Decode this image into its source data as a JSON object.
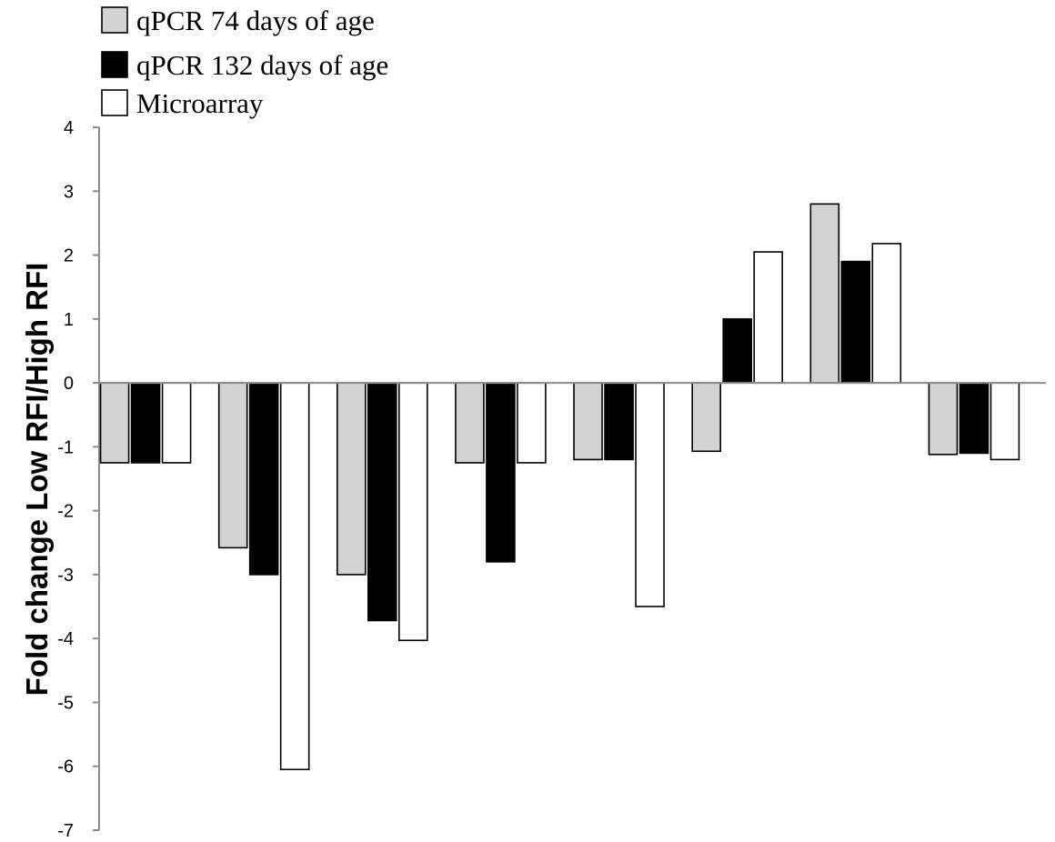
{
  "chart_data": {
    "type": "bar",
    "ylabel": "Fold change Low RFI/High RFI",
    "xlabel": "",
    "ylim": [
      -7,
      4
    ],
    "yticks": [
      4,
      3,
      2,
      1,
      0,
      -1,
      -2,
      -3,
      -4,
      -5,
      -6,
      -7
    ],
    "grid": false,
    "legend_position": "top-left",
    "categories": [
      "",
      "",
      "",
      "",
      "",
      "",
      "",
      ""
    ],
    "series": [
      {
        "name": "qPCR 74 days of age",
        "color": "#d3d3d3",
        "values": [
          -1.25,
          -2.58,
          -3.0,
          -1.25,
          -1.2,
          -1.07,
          2.8,
          -1.12
        ]
      },
      {
        "name": "qPCR 132 days of age",
        "color": "#000000",
        "values": [
          -1.25,
          -3.0,
          -3.72,
          -2.8,
          -1.2,
          1.0,
          1.9,
          -1.1
        ]
      },
      {
        "name": "Microarray",
        "color": "#ffffff",
        "values": [
          -1.25,
          -6.05,
          -4.03,
          -1.25,
          -3.5,
          2.05,
          2.18,
          -1.2
        ]
      }
    ]
  }
}
